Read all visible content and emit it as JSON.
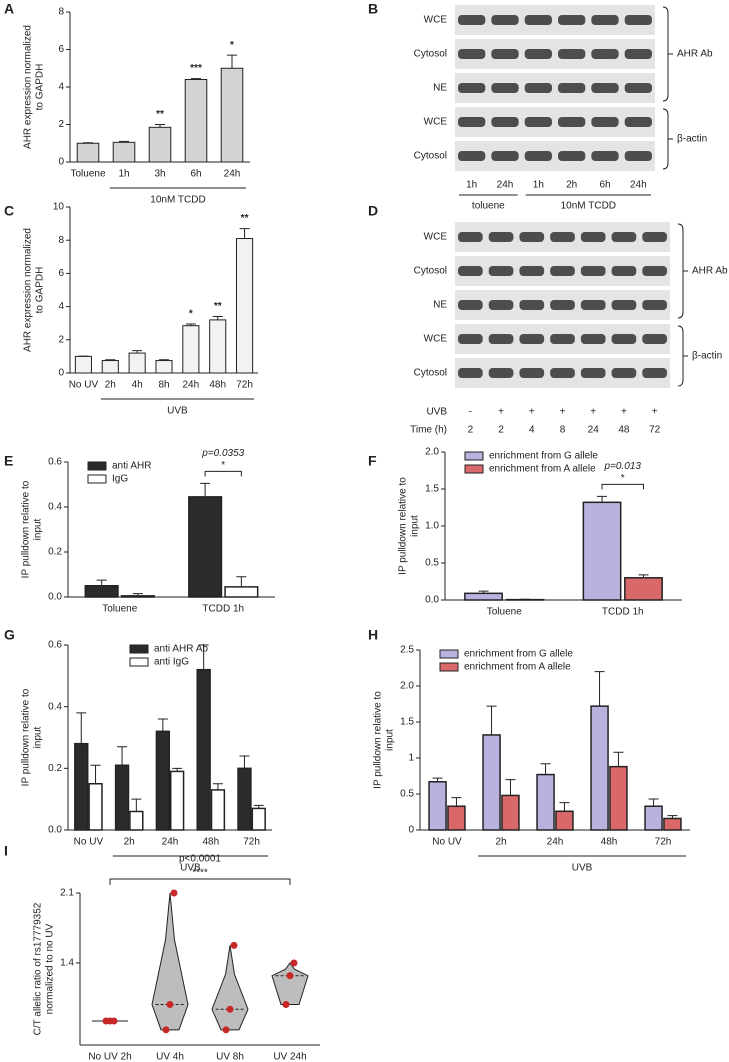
{
  "chart_data": [
    {
      "type": "bar",
      "panel": "A",
      "ylabel": [
        "AHR expression normalized",
        "to GAPDH"
      ],
      "categories": [
        "Toluene",
        "1h",
        "3h",
        "6h",
        "24h"
      ],
      "values": [
        1.0,
        1.05,
        1.85,
        4.4,
        5.0
      ],
      "errors": [
        0.03,
        0.05,
        0.15,
        0.05,
        0.7
      ],
      "significance": [
        null,
        null,
        "**",
        "***",
        "*"
      ],
      "color": "#d3d3d3",
      "ylim": [
        0,
        8
      ],
      "yticks": [
        0,
        2,
        4,
        6,
        8
      ],
      "group_label": "10nM TCDD"
    },
    {
      "type": "bar",
      "panel": "C",
      "ylabel": [
        "AHR expression normalized",
        "to GAPDH"
      ],
      "categories": [
        "No UV",
        "2h",
        "4h",
        "8h",
        "24h",
        "48h",
        "72h"
      ],
      "values": [
        1.0,
        0.75,
        1.2,
        0.75,
        2.85,
        3.2,
        8.1
      ],
      "errors": [
        0.02,
        0.05,
        0.15,
        0.05,
        0.1,
        0.2,
        0.6
      ],
      "significance": [
        null,
        null,
        null,
        null,
        "*",
        "**",
        "**"
      ],
      "color": "#f2f2f2",
      "ylim": [
        0,
        10
      ],
      "yticks": [
        0,
        2,
        4,
        6,
        8,
        10
      ],
      "group_label": "UVB"
    },
    {
      "type": "grouped_bar",
      "panel": "E",
      "ylabel": [
        "IP pulldown relative to",
        "input"
      ],
      "categories": [
        "Toluene",
        "TCDD 1h"
      ],
      "series": [
        {
          "name": "anti AHR",
          "color": "#2b2b2b",
          "values": [
            0.05,
            0.445
          ],
          "errors": [
            0.025,
            0.06
          ]
        },
        {
          "name": "IgG",
          "color": "#ffffff",
          "values": [
            0.005,
            0.045
          ],
          "errors": [
            0.01,
            0.045
          ]
        }
      ],
      "ylim": [
        0,
        0.6
      ],
      "yticks": [
        {
          "value": 0,
          "label": "0.0"
        },
        0.2,
        0.4,
        0.6
      ],
      "legend": "top-left",
      "bracket": {
        "p": "p=0.0353",
        "stars": "*"
      }
    },
    {
      "type": "grouped_bar",
      "panel": "F",
      "ylabel": [
        "IP pulldown relative to",
        "input"
      ],
      "categories": [
        "Toluene",
        "TCDD 1h"
      ],
      "series": [
        {
          "name": "enrichment from G allele",
          "color": "#b7b3de",
          "values": [
            0.09,
            1.32
          ],
          "errors": [
            0.03,
            0.08
          ]
        },
        {
          "name": "enrichment from A allele",
          "color": "#d9686a",
          "values": [
            0.005,
            0.3
          ],
          "errors": [
            0.005,
            0.04
          ]
        }
      ],
      "ylim": [
        0,
        2.0
      ],
      "yticks": [
        {
          "value": 0,
          "label": "0.0"
        },
        0.5,
        {
          "value": 1,
          "label": "1.0"
        },
        1.5,
        {
          "value": 2,
          "label": "2.0"
        }
      ],
      "legend": "top-left",
      "bracket": {
        "p": "p=0.013",
        "stars": "*"
      }
    },
    {
      "type": "grouped_bar",
      "panel": "G",
      "ylabel": [
        "IP pulldown relative to",
        "input"
      ],
      "categories": [
        "No UV",
        "2h",
        "24h",
        "48h",
        "72h"
      ],
      "series": [
        {
          "name": "anti AHR Ab",
          "color": "#2b2b2b",
          "values": [
            0.28,
            0.21,
            0.32,
            0.52,
            0.2
          ],
          "errors": [
            0.1,
            0.06,
            0.04,
            0.08,
            0.04
          ]
        },
        {
          "name": "anti IgG",
          "color": "#ffffff",
          "values": [
            0.15,
            0.06,
            0.19,
            0.13,
            0.07
          ],
          "errors": [
            0.06,
            0.04,
            0.01,
            0.02,
            0.01
          ]
        }
      ],
      "ylim": [
        0,
        0.6
      ],
      "yticks": [
        {
          "value": 0,
          "label": "0.0"
        },
        0.2,
        0.4,
        0.6
      ],
      "legend": "top-center",
      "group_label": "UVB"
    },
    {
      "type": "grouped_bar",
      "panel": "H",
      "ylabel": [
        "IP pulldown relative to",
        "input"
      ],
      "categories": [
        "No UV",
        "2h",
        "24h",
        "48h",
        "72h"
      ],
      "series": [
        {
          "name": "enrichment from G allele",
          "color": "#b7b3de",
          "values": [
            0.67,
            1.32,
            0.77,
            1.72,
            0.33
          ],
          "errors": [
            0.05,
            0.4,
            0.15,
            0.48,
            0.1
          ]
        },
        {
          "name": "enrichment from A allele",
          "color": "#d9686a",
          "values": [
            0.33,
            0.48,
            0.26,
            0.88,
            0.16
          ],
          "errors": [
            0.12,
            0.22,
            0.12,
            0.2,
            0.04
          ]
        }
      ],
      "ylim": [
        0,
        2.5
      ],
      "yticks": [
        0,
        0.5,
        1,
        1.5,
        {
          "value": 2,
          "label": "2.0"
        },
        2.5
      ],
      "legend": "top-left",
      "group_label": "UVB"
    },
    {
      "type": "violin",
      "panel": "I",
      "ylabel": [
        "C/T allelic ratio of rs17779352",
        "normalized to no UV"
      ],
      "categories": [
        "No UV 2h",
        "UV 4h",
        "UV 8h",
        "UV 24h"
      ],
      "min": [
        1.0,
        0.95,
        0.95,
        1.1
      ],
      "median": [
        1.0,
        1.1,
        1.07,
        1.3
      ],
      "max": [
        1.0,
        2.1,
        1.55,
        1.4
      ],
      "color": "#bdbdbd",
      "log": true,
      "ylim": [
        0.87,
        2.1
      ],
      "yticks": [
        1.4,
        2.1
      ],
      "bracket": {
        "p": "p<0.0001",
        "stars": "****"
      }
    }
  ],
  "blots": [
    {
      "panel": "B",
      "rows": [
        "WCE",
        "Cytosol",
        "NE",
        "WCE",
        "Cytosol"
      ],
      "brackets": [
        "AHR Ab",
        "β-actin"
      ],
      "lanes": [
        "1h",
        "24h",
        "1h",
        "2h",
        "6h",
        "24h"
      ],
      "groups": [
        "toluene",
        "10nM TCDD"
      ]
    },
    {
      "panel": "D",
      "rows": [
        "WCE",
        "Cytosol",
        "NE",
        "WCE",
        "Cytosol"
      ],
      "brackets": [
        "AHR Ab",
        "β-actin"
      ],
      "lane_rows": [
        {
          "label": "UVB",
          "values": [
            "-",
            "+",
            "+",
            "+",
            "+",
            "+",
            "+"
          ]
        },
        {
          "label": "Time (h)",
          "values": [
            2,
            2,
            4,
            8,
            24,
            48,
            72
          ]
        }
      ]
    }
  ]
}
